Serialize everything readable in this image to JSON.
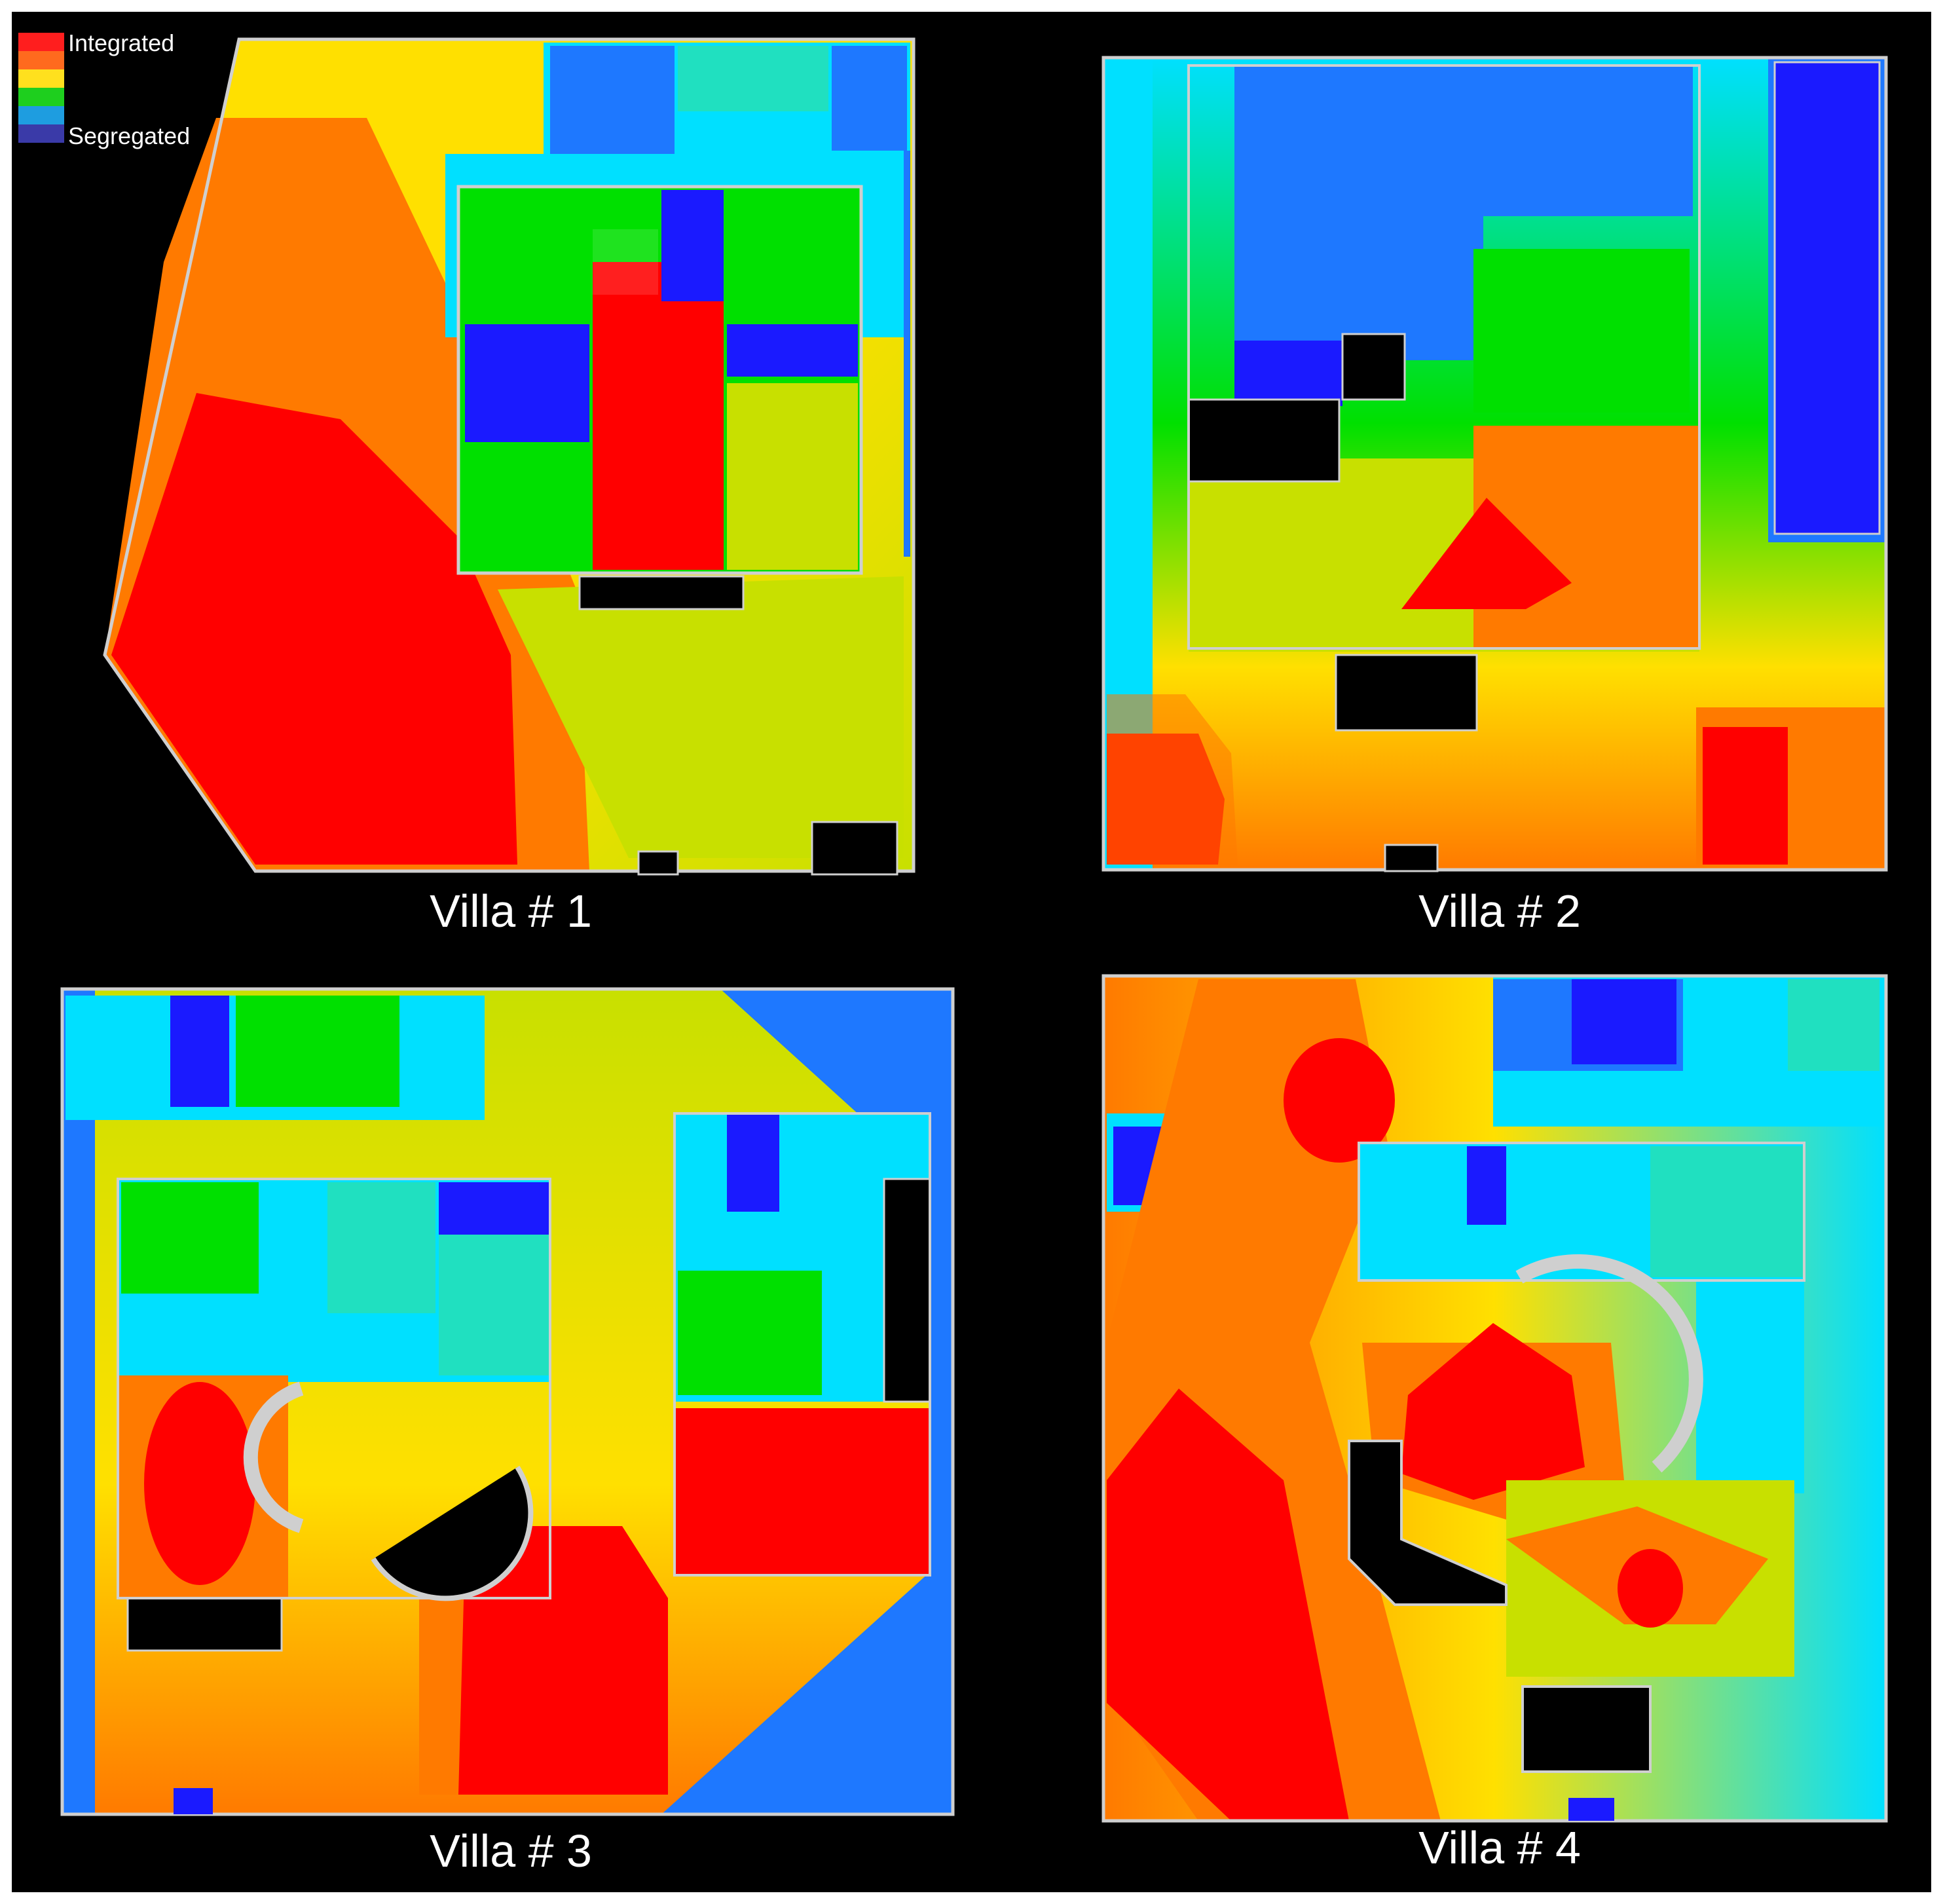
{
  "legend": {
    "integrated_label": "Integrated",
    "segregated_label": "Segregated",
    "scale_colors": [
      "#ff1e1e",
      "#ff6a1e",
      "#ffe01e",
      "#1ecf1e",
      "#1e9de0",
      "#3a3aa8"
    ]
  },
  "palette": {
    "red": "#ff0000",
    "orange": "#ff7a00",
    "yellow": "#ffe000",
    "yellow_green": "#c8e000",
    "green": "#00e000",
    "cyan": "#00e0ff",
    "aqua": "#20e0c0",
    "blue": "#1e78ff",
    "dark_blue": "#1a1aff",
    "background": "#000000",
    "wall": "#cfcfcf"
  },
  "villas": [
    {
      "caption": "Villa # 1"
    },
    {
      "caption": "Villa # 2"
    },
    {
      "caption": "Villa # 3"
    },
    {
      "caption": "Villa # 4"
    }
  ]
}
